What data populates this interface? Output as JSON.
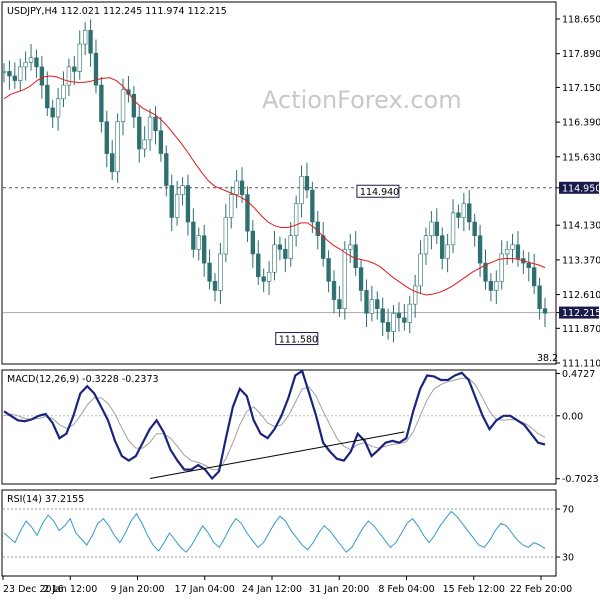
{
  "watermark": "ActionForex.com",
  "colors": {
    "candle": "#2e6f6f",
    "ma": "#e31a1c",
    "macd": "#1a237e",
    "signal": "#a0a0a0",
    "rsi": "#3399cc",
    "dashed": "#555555",
    "trendline": "#000000",
    "tag_bg": "#1a1a4d",
    "tag_text": "#ffffff"
  },
  "chart_data": [
    {
      "type": "candlestick",
      "header": "USDJPY,H4  112.021 112.245 111.974 112.215",
      "ylim": [
        111.11,
        119.0
      ],
      "ticks": [
        "118.650",
        "117.890",
        "117.150",
        "116.390",
        "115.630",
        "114.950",
        "114.130",
        "113.370",
        "112.610",
        "112.215",
        "111.870",
        "111.110"
      ],
      "tick_values": [
        118.65,
        117.89,
        117.15,
        116.39,
        115.63,
        114.95,
        114.13,
        113.37,
        112.61,
        112.215,
        111.87,
        111.11
      ],
      "current_tag": "112.215",
      "highlight_tag": "114.950",
      "annotations": [
        {
          "text": "114.940",
          "x": 73,
          "y": 114.94
        },
        {
          "text": "111.580",
          "x": 58,
          "y": 111.58
        }
      ],
      "corner_text": "38.2",
      "dashed_level": 114.95,
      "current_level": 112.215,
      "candle_closes": [
        117.5,
        117.4,
        117.3,
        117.6,
        117.7,
        117.8,
        117.6,
        117.2,
        116.7,
        116.5,
        116.9,
        117.2,
        117.6,
        117.5,
        118.1,
        118.4,
        117.9,
        117.2,
        116.4,
        115.7,
        115.3,
        116.4,
        117.1,
        117.0,
        116.5,
        115.8,
        116.0,
        116.5,
        116.2,
        115.7,
        115.0,
        114.3,
        114.8,
        115.0,
        114.2,
        113.6,
        113.9,
        113.3,
        112.9,
        112.7,
        113.5,
        114.3,
        114.8,
        115.1,
        114.8,
        114.0,
        113.5,
        113.0,
        112.9,
        113.1,
        113.7,
        113.6,
        113.4,
        113.9,
        114.6,
        115.2,
        114.9,
        114.2,
        113.9,
        113.4,
        112.9,
        112.5,
        112.3,
        113.6,
        113.7,
        113.2,
        112.7,
        112.2,
        112.5,
        112.3,
        112.0,
        111.8,
        112.2,
        112.1,
        112.0,
        112.4,
        112.8,
        113.5,
        113.9,
        114.2,
        113.9,
        113.4,
        113.7,
        114.4,
        114.3,
        114.6,
        114.2,
        113.9,
        113.3,
        112.9,
        112.7,
        112.9,
        113.5,
        113.6,
        113.7,
        113.4,
        113.3,
        113.2,
        112.8,
        112.3,
        112.2
      ],
      "ma_values": [
        116.9,
        117.0,
        117.05,
        117.1,
        117.18,
        117.3,
        117.38,
        117.4,
        117.38,
        117.32,
        117.28,
        117.26,
        117.26,
        117.28,
        117.32,
        117.35,
        117.36,
        117.3,
        117.18,
        117.0,
        116.82,
        116.7,
        116.62,
        116.54,
        116.42,
        116.26,
        116.08,
        115.9,
        115.7,
        115.48,
        115.28,
        115.1,
        114.98,
        114.92,
        114.86,
        114.8,
        114.74,
        114.64,
        114.5,
        114.34,
        114.2,
        114.12,
        114.08,
        114.08,
        114.12,
        114.18,
        114.18,
        114.08,
        113.94,
        113.8,
        113.68,
        113.6,
        113.5,
        113.42,
        113.38,
        113.35,
        113.3,
        113.22,
        113.1,
        112.98,
        112.88,
        112.78,
        112.7,
        112.64,
        112.6,
        112.62,
        112.66,
        112.72,
        112.8,
        112.9,
        113.0,
        113.1,
        113.18,
        113.26,
        113.32,
        113.38,
        113.4,
        113.4,
        113.38,
        113.34,
        113.3,
        113.26,
        113.2
      ],
      "ma_start_index": 0,
      "xlabels": [
        "23 Dec 2016",
        "2 Jan 12:00",
        "9 Jan 20:00",
        "17 Jan 04:00",
        "24 Jan 12:00",
        "31 Jan 20:00",
        "8 Feb 04:00",
        "15 Feb 12:00",
        "22 Feb 20:00"
      ]
    },
    {
      "type": "line",
      "header": "MACD(12,26,9) -0.3228 -0.2373",
      "ylim": [
        -0.75,
        0.5
      ],
      "ticks": [
        "0.4727",
        "0.00",
        "-0.7023"
      ],
      "tick_values": [
        0.4727,
        0.0,
        -0.7023
      ],
      "series": [
        {
          "values": [
            0.05,
            0.0,
            -0.05,
            -0.06,
            -0.04,
            0.0,
            0.02,
            -0.08,
            -0.25,
            -0.2,
            0.0,
            0.25,
            0.33,
            0.25,
            0.1,
            -0.05,
            -0.28,
            -0.45,
            -0.5,
            -0.45,
            -0.3,
            -0.15,
            -0.05,
            -0.18,
            -0.38,
            -0.5,
            -0.6,
            -0.6,
            -0.55,
            -0.6,
            -0.7,
            -0.62,
            -0.25,
            0.1,
            0.3,
            0.22,
            -0.05,
            -0.2,
            -0.25,
            -0.15,
            0.0,
            0.2,
            0.45,
            0.5,
            0.25,
            0.0,
            -0.3,
            -0.4,
            -0.48,
            -0.5,
            -0.4,
            -0.2,
            -0.28,
            -0.45,
            -0.38,
            -0.3,
            -0.28,
            -0.3,
            -0.25,
            0.05,
            0.3,
            0.45,
            0.44,
            0.4,
            0.4,
            0.45,
            0.48,
            0.4,
            0.2,
            0.0,
            -0.15,
            -0.05,
            0.0,
            0.0,
            -0.05,
            -0.1,
            -0.2,
            -0.3,
            -0.32
          ]
        },
        {
          "values": [
            0.0,
            0.02,
            0.0,
            -0.03,
            -0.04,
            -0.03,
            -0.01,
            -0.03,
            -0.1,
            -0.14,
            -0.1,
            0.0,
            0.12,
            0.2,
            0.2,
            0.14,
            0.02,
            -0.14,
            -0.28,
            -0.36,
            -0.36,
            -0.3,
            -0.2,
            -0.2,
            -0.25,
            -0.34,
            -0.44,
            -0.5,
            -0.52,
            -0.55,
            -0.6,
            -0.6,
            -0.48,
            -0.3,
            -0.1,
            0.05,
            0.1,
            0.02,
            -0.08,
            -0.12,
            -0.1,
            0.0,
            0.15,
            0.3,
            0.32,
            0.22,
            0.05,
            -0.1,
            -0.25,
            -0.34,
            -0.38,
            -0.32,
            -0.3,
            -0.34,
            -0.36,
            -0.34,
            -0.32,
            -0.31,
            -0.29,
            -0.18,
            0.0,
            0.18,
            0.3,
            0.35,
            0.38,
            0.4,
            0.42,
            0.42,
            0.34,
            0.2,
            0.05,
            -0.04,
            -0.05,
            -0.04,
            -0.05,
            -0.08,
            -0.13,
            -0.2,
            -0.24
          ]
        }
      ],
      "trendline": {
        "x": [
          27,
          74
        ],
        "y": [
          -0.7,
          -0.18
        ]
      }
    },
    {
      "type": "line",
      "header": "RSI(14) 37.2155",
      "ylim": [
        15,
        85
      ],
      "ticks": [
        "70",
        "30"
      ],
      "tick_values": [
        70,
        30
      ],
      "reference_lines": [
        70,
        30
      ],
      "series": [
        {
          "values": [
            50,
            46,
            42,
            52,
            60,
            55,
            48,
            58,
            65,
            60,
            52,
            56,
            62,
            50,
            45,
            40,
            48,
            58,
            62,
            56,
            48,
            42,
            50,
            60,
            66,
            58,
            48,
            40,
            35,
            42,
            50,
            44,
            38,
            34,
            40,
            48,
            56,
            50,
            42,
            38,
            46,
            55,
            62,
            58,
            50,
            44,
            38,
            42,
            50,
            58,
            64,
            60,
            52,
            46,
            40,
            36,
            42,
            50,
            56,
            52,
            46,
            40,
            34,
            38,
            46,
            54,
            60,
            56,
            50,
            44,
            38,
            42,
            50,
            58,
            62,
            56,
            48,
            42,
            48,
            56,
            62,
            68,
            64,
            58,
            52,
            46,
            40,
            38,
            44,
            52,
            58,
            56,
            50,
            44,
            40,
            38,
            42,
            40,
            37
          ]
        }
      ]
    }
  ]
}
